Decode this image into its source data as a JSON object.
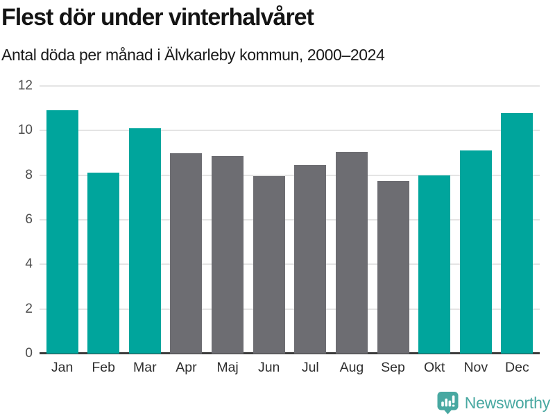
{
  "header": {
    "title": "Flest dör under vinterhalvåret",
    "subtitle": "Antal döda per månad i Älvkarleby kommun, 2000–2024"
  },
  "chart_data": {
    "type": "bar",
    "title": "Flest dör under vinterhalvåret",
    "subtitle": "Antal döda per månad i Älvkarleby kommun, 2000–2024",
    "categories": [
      "Jan",
      "Feb",
      "Mar",
      "Apr",
      "Maj",
      "Jun",
      "Jul",
      "Aug",
      "Sep",
      "Okt",
      "Nov",
      "Dec"
    ],
    "values": [
      10.9,
      8.1,
      10.1,
      9.0,
      8.85,
      7.95,
      8.45,
      9.05,
      7.75,
      8.0,
      9.1,
      10.8
    ],
    "bar_groups": [
      "winter",
      "winter",
      "winter",
      "summer",
      "summer",
      "summer",
      "summer",
      "summer",
      "summer",
      "winter",
      "winter",
      "winter"
    ],
    "palette": {
      "winter": "#00a59c",
      "summer": "#6d6d72"
    },
    "xlabel": "",
    "ylabel": "",
    "ylim": [
      0,
      12
    ],
    "yticks": [
      0,
      2,
      4,
      6,
      8,
      10,
      12
    ],
    "grid": true,
    "legend": false
  },
  "footer": {
    "brand": "Newsworthy",
    "brand_color": "#48a8a1",
    "logo_icon": "bar-chart-speech-bubble"
  },
  "colors": {
    "accent_teal": "#00a59c",
    "neutral_gray": "#6d6d72",
    "gridline": "#e4e4e4",
    "axis_line": "#3b3b3b",
    "background": "#ffffff"
  }
}
